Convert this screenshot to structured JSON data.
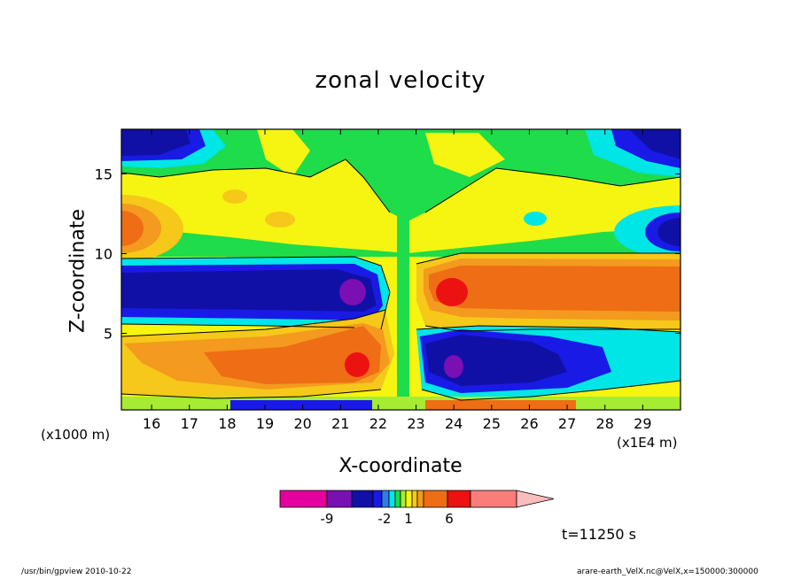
{
  "chart_data": {
    "type": "heatmap",
    "title": "zonal velocity",
    "xlabel": "X-coordinate",
    "ylabel": "Z-coordinate",
    "x_unit": "(x1E4 m)",
    "y_unit": "(x1000 m)",
    "xlim": [
      15.2,
      30.0
    ],
    "ylim": [
      0.2,
      17.8
    ],
    "x_ticks": [
      "16",
      "17",
      "18",
      "19",
      "20",
      "21",
      "22",
      "23",
      "24",
      "25",
      "26",
      "27",
      "28",
      "29"
    ],
    "y_ticks": [
      "5",
      "10",
      "15"
    ],
    "x_tick_values": [
      16,
      17,
      18,
      19,
      20,
      21,
      22,
      23,
      24,
      25,
      26,
      27,
      28,
      29
    ],
    "y_tick_values": [
      5,
      10,
      15
    ],
    "colorbar": {
      "labels": [
        "-9",
        "-2",
        "1",
        "6"
      ],
      "label_positions": [
        -9,
        -2,
        1,
        6
      ],
      "colors": [
        "#e3009c",
        "#7a0fb4",
        "#1010a6",
        "#1a1ae6",
        "#2e7de8",
        "#00e5e5",
        "#1edc4a",
        "#a6ec33",
        "#f5f511",
        "#f5c81a",
        "#f39a1f",
        "#ef6d14",
        "#ec1212",
        "#fb7d7b",
        "#fbbcbc"
      ]
    },
    "grid": false,
    "legend": "bottom colorbar"
  },
  "annotations": {
    "timestamp": "t=11250 s",
    "footer_left": "/usr/bin/gpview   2010-10-22",
    "footer_right": "arare-earth_VelX.nc@VelX,x=150000:300000"
  }
}
